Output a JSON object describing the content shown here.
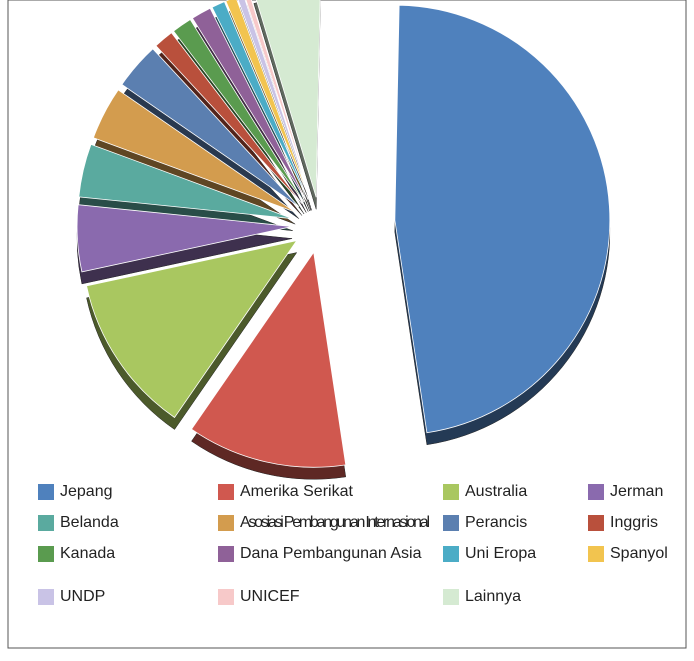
{
  "chart_data": {
    "type": "pie",
    "categories": [
      "Jepang",
      "Amerika Serikat",
      "Australia",
      "Jerman",
      "Belanda",
      "Asosiasi Pembangunan Internasional",
      "Perancis",
      "Inggris",
      "Kanada",
      "Dana Pembangunan Asia",
      "Uni Eropa",
      "Spanyol",
      "UNDP",
      "UNICEF",
      "Lainnya"
    ],
    "values": [
      47.3,
      12,
      12,
      5,
      4,
      4,
      3.5,
      1.5,
      1.5,
      1.5,
      1,
      0.8,
      0.5,
      0.4,
      5
    ],
    "colors": [
      "#4f81bd",
      "#d0584f",
      "#a9c760",
      "#8a6aae",
      "#5aaa9f",
      "#d39c4e",
      "#5b7fb0",
      "#b9503c",
      "#5a9b4f",
      "#8f6198",
      "#4bacc6",
      "#f2c44f",
      "#c9c3e6",
      "#f7c9c9",
      "#d5ead2"
    ],
    "legend": "bottom"
  }
}
